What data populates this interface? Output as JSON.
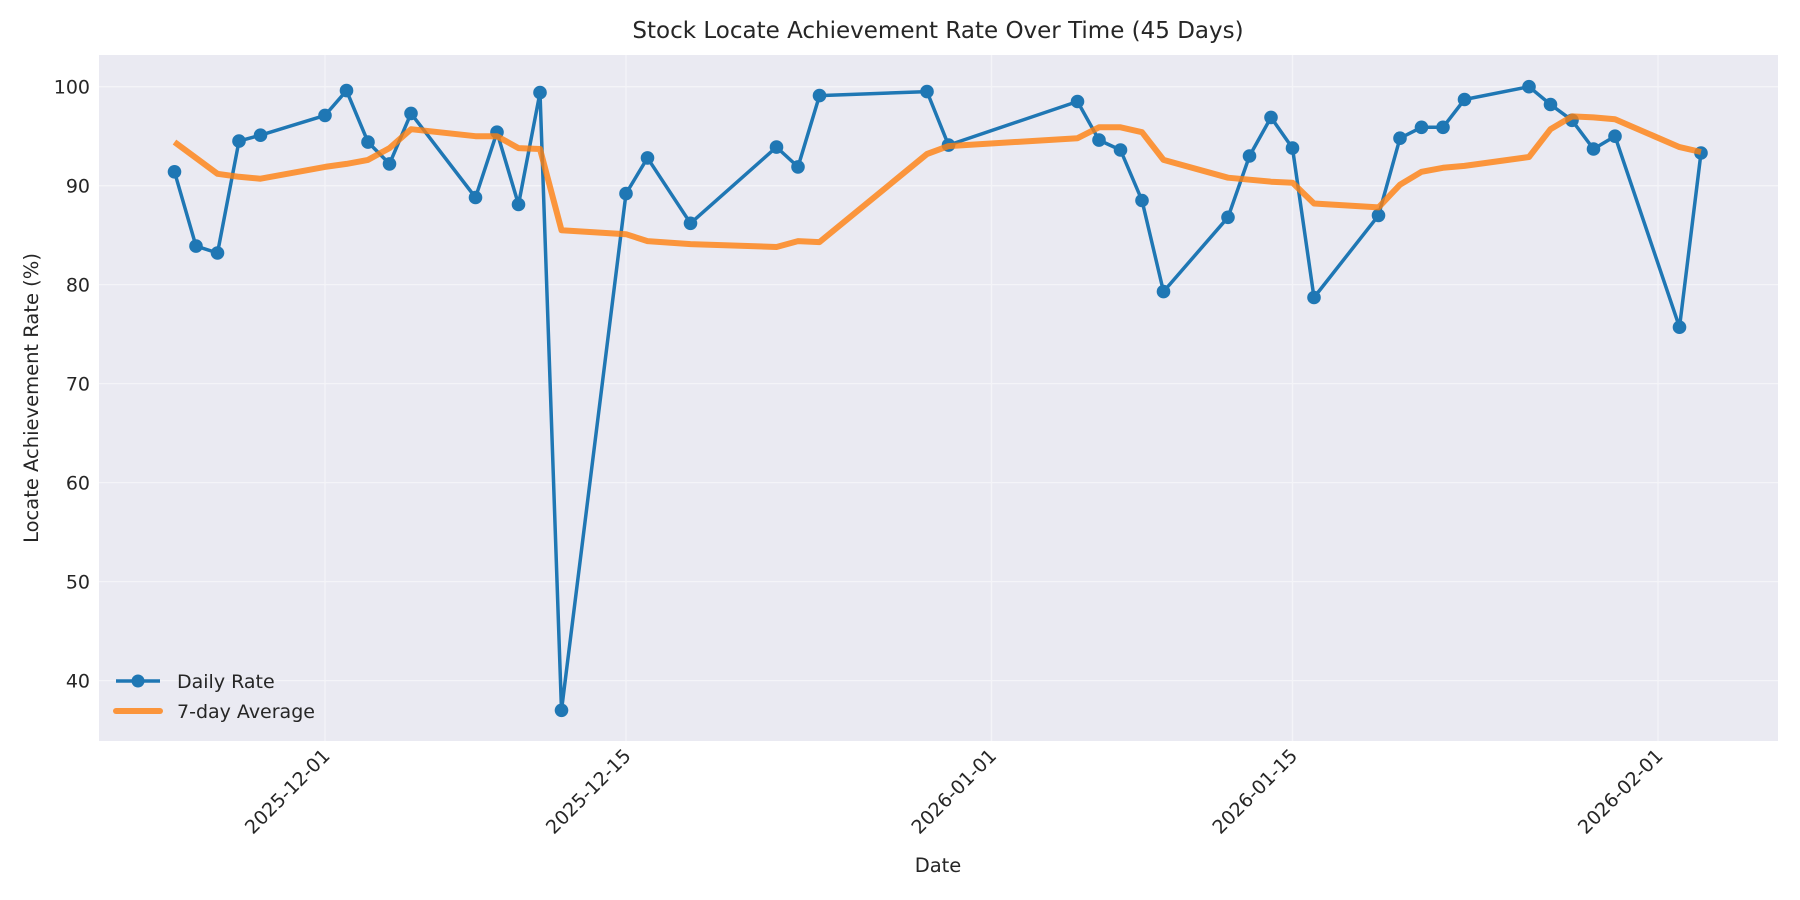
{
  "chart_data": {
    "type": "line",
    "title": "Stock Locate Achievement Rate Over Time (45 Days)",
    "xlabel": "Date",
    "ylabel": "Locate Achievement Rate (%)",
    "ylim": [
      33.9,
      103.2
    ],
    "yticks": [
      40,
      50,
      60,
      70,
      80,
      90,
      100
    ],
    "xticks": [
      "2025-12-01",
      "2025-12-15",
      "2026-01-01",
      "2026-01-15",
      "2026-02-01"
    ],
    "xlim": [
      "2025-11-20",
      "2026-02-07"
    ],
    "grid": true,
    "legend_position": "lower left",
    "legend": [
      "Daily Rate",
      "7-day Average"
    ],
    "x": [
      "2025-11-24",
      "2025-11-25",
      "2025-11-26",
      "2025-11-27",
      "2025-11-28",
      "2025-12-01",
      "2025-12-02",
      "2025-12-03",
      "2025-12-04",
      "2025-12-05",
      "2025-12-08",
      "2025-12-09",
      "2025-12-10",
      "2025-12-11",
      "2025-12-12",
      "2025-12-15",
      "2025-12-16",
      "2025-12-18",
      "2025-12-22",
      "2025-12-23",
      "2025-12-24",
      "2025-12-29",
      "2025-12-30",
      "2026-01-05",
      "2026-01-06",
      "2026-01-07",
      "2026-01-08",
      "2026-01-09",
      "2026-01-12",
      "2026-01-13",
      "2026-01-14",
      "2026-01-15",
      "2026-01-16",
      "2026-01-19",
      "2026-01-20",
      "2026-01-21",
      "2026-01-22",
      "2026-01-23",
      "2026-01-26",
      "2026-01-27",
      "2026-01-28",
      "2026-01-29",
      "2026-01-30",
      "2026-02-02",
      "2026-02-03"
    ],
    "series": [
      {
        "name": "Daily Rate",
        "color": "#1f77b4",
        "marker": "circle",
        "values": [
          91.4,
          83.9,
          83.2,
          94.5,
          95.1,
          97.1,
          99.6,
          94.4,
          92.2,
          97.3,
          88.8,
          95.4,
          88.1,
          99.4,
          37.0,
          89.2,
          92.8,
          86.2,
          93.9,
          91.9,
          99.1,
          99.5,
          94.1,
          98.5,
          94.6,
          93.6,
          88.5,
          79.3,
          86.8,
          93.0,
          96.9,
          93.8,
          78.7,
          87.0,
          94.8,
          95.9,
          95.9,
          98.7,
          100.0,
          98.2,
          96.6,
          93.7,
          95.0,
          75.7,
          93.3
        ]
      },
      {
        "name": "7-day Average",
        "color": "#ff7f0e",
        "marker": "none",
        "values": [
          94.4,
          92.8,
          91.2,
          90.9,
          90.7,
          91.9,
          92.2,
          92.6,
          93.8,
          95.7,
          95.0,
          95.0,
          93.8,
          93.7,
          85.5,
          85.1,
          84.4,
          84.1,
          83.8,
          84.4,
          84.3,
          93.2,
          94.0,
          94.8,
          95.9,
          95.9,
          95.4,
          92.6,
          90.8,
          90.6,
          90.4,
          90.3,
          88.2,
          87.8,
          90.1,
          91.4,
          91.8,
          92.0,
          92.9,
          95.7,
          97.0,
          96.9,
          96.7,
          93.9,
          93.4
        ]
      }
    ]
  },
  "style": {
    "plot_bg": "#eaeaf2",
    "grid_color": "#f4f4f8",
    "daily_color": "#1f77b4",
    "avg_color": "#ff7f0e"
  }
}
